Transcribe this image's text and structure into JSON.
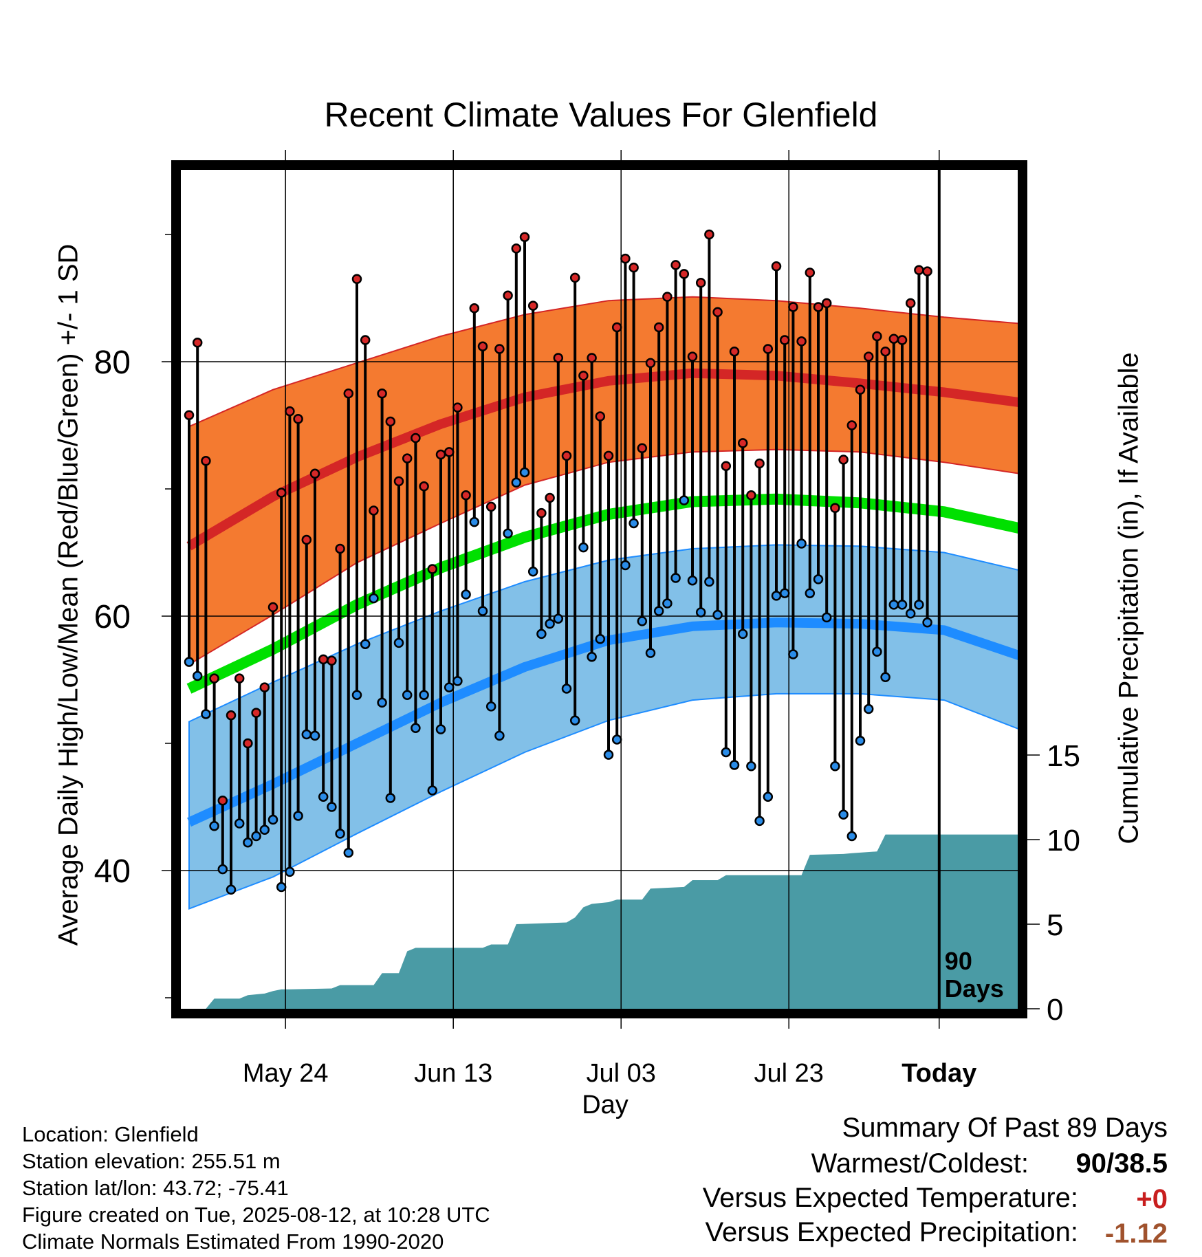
{
  "chart_data": {
    "type": "line",
    "title": "Recent Climate Values For Glenfield",
    "xlabel": "Day",
    "ylabel": "Average Daily High/Low/Mean (Red/Blue/Green) +/- 1 SD",
    "y2label": "Cumulative Precipitation (in), If Available",
    "x_start": "May 13",
    "x_end": "Aug 22",
    "today_index": 89,
    "x_ticks": [
      {
        "index": 11,
        "label": "May 24"
      },
      {
        "index": 31,
        "label": "Jun 13"
      },
      {
        "index": 51,
        "label": "Jul 03"
      },
      {
        "index": 71,
        "label": "Jul 23"
      },
      {
        "index": 91,
        "label": "Today"
      }
    ],
    "ylim": [
      29,
      94
    ],
    "y_ticks": [
      40,
      60,
      80
    ],
    "y2lim": [
      0,
      20
    ],
    "y2_ticks": [
      0,
      5,
      10,
      15
    ],
    "grid": true,
    "today_label": "90\nDays",
    "colors": {
      "high_band": "#f47a30",
      "high_mean": "#d42626",
      "mean": "#00e000",
      "low_band": "#82c0e8",
      "low_mean": "#1e8cff",
      "precip": "#4a9ba5",
      "high_dot": "#d62828",
      "low_dot": "#2a8ce8"
    },
    "normals": {
      "x": [
        0,
        10,
        20,
        30,
        40,
        50,
        60,
        70,
        80,
        90,
        99
      ],
      "high_mean": [
        65.5,
        69.4,
        72.5,
        75.1,
        77.2,
        78.5,
        79.1,
        78.9,
        78.3,
        77.6,
        76.8
      ],
      "high_sd_upper": [
        74.9,
        77.8,
        79.9,
        82.0,
        83.7,
        84.8,
        85.1,
        84.8,
        84.2,
        83.5,
        83.0
      ],
      "high_sd_lower": [
        56.2,
        60.1,
        64.2,
        67.3,
        70.3,
        72.1,
        72.9,
        73.1,
        72.9,
        72.1,
        71.2
      ],
      "mean": [
        54.3,
        57.4,
        60.9,
        63.8,
        66.2,
        68.0,
        69.0,
        69.2,
        68.9,
        68.2,
        66.9
      ],
      "low_mean": [
        43.8,
        46.8,
        50.0,
        53.2,
        56.0,
        58.1,
        59.2,
        59.5,
        59.4,
        58.9,
        56.9
      ],
      "low_sd_upper": [
        51.7,
        54.8,
        57.8,
        60.4,
        62.7,
        64.4,
        65.3,
        65.6,
        65.5,
        65.0,
        63.6
      ],
      "low_sd_lower": [
        37.0,
        39.5,
        42.9,
        46.2,
        49.3,
        51.8,
        53.4,
        53.9,
        53.9,
        53.4,
        51.1
      ]
    },
    "series": [
      {
        "name": "High",
        "values": [
          75.8,
          81.5,
          72.2,
          55.1,
          45.5,
          52.2,
          55.1,
          50.0,
          52.4,
          54.4,
          60.7,
          69.7,
          76.1,
          75.5,
          66.0,
          71.2,
          56.6,
          56.5,
          65.3,
          77.5,
          86.5,
          81.7,
          68.3,
          77.5,
          75.3,
          70.6,
          72.4,
          74.0,
          70.2,
          63.7,
          72.7,
          72.9,
          76.4,
          69.5,
          84.2,
          81.2,
          68.6,
          81.0,
          85.2,
          88.9,
          89.8,
          84.4,
          68.1,
          69.3,
          80.3,
          72.6,
          86.6,
          78.9,
          80.3,
          75.7,
          72.6,
          82.7,
          88.1,
          87.4,
          73.2,
          79.9,
          82.7,
          85.1,
          87.6,
          86.9,
          80.4,
          86.2,
          90.0,
          83.9,
          71.8,
          80.8,
          73.6,
          69.5,
          72.0,
          81.0,
          87.5,
          81.7,
          84.3,
          81.6,
          87.0,
          84.3,
          84.6,
          68.5,
          72.3,
          75.0,
          77.8,
          80.4,
          82.0,
          80.8,
          81.8,
          81.7,
          84.6,
          87.2,
          87.1
        ],
        "lows": [
          56.4,
          55.3,
          52.3,
          43.5,
          40.1,
          38.5,
          43.7,
          42.2,
          42.7,
          43.2,
          44.0,
          38.7,
          39.9,
          44.3,
          50.7,
          50.6,
          45.8,
          45.0,
          42.9,
          41.4,
          53.8,
          57.8,
          61.4,
          53.2,
          45.7,
          57.9,
          53.8,
          51.2,
          53.8,
          46.3,
          51.1,
          54.4,
          54.9,
          61.7,
          67.4,
          60.4,
          52.9,
          50.6,
          66.5,
          70.5,
          71.3,
          63.5,
          58.6,
          59.4,
          59.8,
          54.3,
          51.8,
          65.4,
          56.8,
          58.2,
          49.1,
          50.3,
          64.0,
          67.3,
          59.6,
          57.1,
          60.4,
          61.0,
          63.0,
          69.1,
          62.8,
          60.3,
          62.7,
          60.1,
          49.3,
          48.3,
          58.6,
          48.2,
          43.9,
          45.8,
          61.6,
          61.8,
          57.0,
          65.7,
          61.8,
          62.9,
          59.9,
          48.2,
          44.4,
          42.7,
          50.2,
          52.7,
          57.2,
          55.2,
          60.9,
          60.9,
          60.2,
          60.9,
          59.5
        ]
      },
      {
        "name": "Cumulative Precipitation",
        "x": [
          0,
          2,
          3,
          6,
          7,
          9,
          10,
          11,
          12,
          17,
          18,
          22,
          23,
          25,
          26,
          27,
          35,
          36,
          38,
          39,
          45,
          46,
          47,
          48,
          50,
          51,
          54,
          55,
          59,
          60,
          63,
          64,
          73,
          74,
          78,
          79,
          82,
          83,
          99
        ],
        "values": [
          0,
          0.0,
          0.6,
          0.6,
          0.8,
          0.9,
          1.05,
          1.15,
          1.15,
          1.2,
          1.4,
          1.4,
          2.1,
          2.1,
          3.4,
          3.6,
          3.6,
          3.8,
          3.8,
          5.0,
          5.1,
          5.4,
          6.0,
          6.2,
          6.3,
          6.45,
          6.45,
          7.1,
          7.2,
          7.6,
          7.6,
          7.9,
          7.9,
          9.1,
          9.15,
          9.2,
          9.3,
          10.3,
          10.3
        ]
      }
    ]
  },
  "footer": {
    "location": "Location: Glenfield",
    "elevation": "Station elevation: 255.51 m",
    "latlon": "Station lat/lon: 43.72; -75.41",
    "created": "Figure created on Tue, 2025-08-12, at 10:28 UTC",
    "normals": "Climate Normals Estimated From 1990-2020"
  },
  "summary": {
    "title": "Summary Of Past 89 Days",
    "warmest_label": "Warmest/Coldest:",
    "warmest_value": "90/38.5",
    "temp_label": "Versus Expected Temperature:",
    "temp_value": "+0",
    "temp_color": "#c81e1e",
    "precip_label": "Versus Expected Precipitation:",
    "precip_value": "-1.12",
    "precip_color": "#a0522d"
  }
}
